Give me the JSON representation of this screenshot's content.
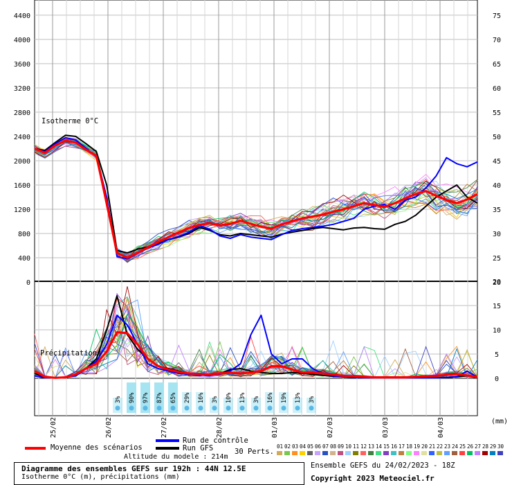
{
  "chart_data": [
    {
      "type": "line",
      "title": "Isotherme 0°C",
      "left_axis": {
        "ticks": [
          0,
          400,
          800,
          1200,
          1600,
          2000,
          2400,
          2800,
          3200,
          3600,
          4000,
          4400
        ],
        "range": [
          0,
          4600
        ]
      },
      "right_axis": {
        "ticks": [
          20,
          25,
          30,
          35,
          40,
          45,
          50,
          55,
          60,
          65,
          70,
          75
        ],
        "range": [
          20,
          77
        ]
      },
      "x_labels": [
        "25/02",
        "26/02",
        "27/02",
        "28/02",
        "01/03",
        "02/03",
        "03/03",
        "04/03"
      ],
      "series": [
        {
          "name": "Moyenne des scénarios",
          "color": "#ff0000",
          "values": [
            2200,
            2130,
            2250,
            2330,
            2300,
            2180,
            2080,
            1300,
            480,
            400,
            480,
            570,
            660,
            740,
            820,
            890,
            940,
            970,
            930,
            960,
            1010,
            960,
            910,
            880,
            950,
            1000,
            1050,
            1080,
            1110,
            1160,
            1200,
            1250,
            1300,
            1270,
            1240,
            1300,
            1380,
            1450,
            1500,
            1420,
            1350,
            1300,
            1360,
            1450
          ]
        },
        {
          "name": "Run de contrôle",
          "color": "#0000ff",
          "values": [
            2200,
            2150,
            2280,
            2380,
            2340,
            2200,
            2080,
            1400,
            420,
            380,
            470,
            560,
            620,
            700,
            750,
            820,
            930,
            870,
            760,
            720,
            780,
            740,
            720,
            700,
            780,
            850,
            880,
            900,
            920,
            950,
            1000,
            1050,
            1200,
            1250,
            1280,
            1200,
            1350,
            1400,
            1550,
            1750,
            2050,
            1950,
            1900,
            1980
          ]
        },
        {
          "name": "Run GFS",
          "color": "#000000",
          "values": [
            2200,
            2170,
            2300,
            2420,
            2400,
            2280,
            2150,
            1600,
            520,
            480,
            540,
            580,
            640,
            700,
            740,
            800,
            900,
            850,
            780,
            760,
            800,
            780,
            760,
            740,
            790,
            820,
            850,
            880,
            900,
            880,
            860,
            890,
            900,
            880,
            870,
            950,
            1000,
            1100,
            1250,
            1400,
            1500,
            1600,
            1400,
            1300
          ]
        }
      ]
    },
    {
      "type": "line",
      "title": "Précipitations",
      "right_axis": {
        "ticks": [
          0,
          5,
          10,
          15,
          20
        ],
        "range": [
          0,
          20
        ]
      },
      "unit": "(mm)",
      "series": [
        {
          "name": "Moyenne des scénarios",
          "color": "#ff0000",
          "values": [
            1.5,
            0.3,
            0.1,
            0.2,
            0.8,
            2.0,
            3.0,
            5.5,
            9.5,
            9.3,
            7.0,
            4.0,
            2.5,
            1.8,
            1.3,
            1.0,
            0.9,
            0.8,
            1.0,
            1.2,
            1.0,
            1.2,
            1.5,
            2.5,
            2.5,
            1.8,
            1.2,
            1.2,
            1.0,
            0.8,
            0.5,
            0.4,
            0.3,
            0.2,
            0.2,
            0.2,
            0.2,
            0.3,
            0.4,
            0.5,
            0.7,
            0.9,
            0.6,
            0.2
          ]
        },
        {
          "name": "Run de contrôle",
          "color": "#0000ff",
          "values": [
            0.5,
            0.1,
            0.1,
            0.2,
            0.5,
            2.0,
            3.5,
            7.0,
            13.0,
            11.0,
            7.0,
            3.0,
            2.0,
            1.5,
            1.0,
            0.8,
            0.7,
            0.6,
            0.8,
            1.5,
            3.0,
            9.0,
            13.0,
            5.0,
            3.0,
            4.0,
            4.0,
            2.0,
            1.0,
            0.5,
            0.3,
            0.2,
            0.1,
            0.1,
            0.1,
            0.1,
            0.1,
            0.1,
            0.1,
            0.1,
            0.2,
            0.3,
            1.5,
            0.2
          ]
        },
        {
          "name": "Run GFS",
          "color": "#000000",
          "values": [
            1.0,
            0.2,
            0.1,
            0.2,
            0.6,
            2.0,
            4.0,
            10.0,
            17.0,
            9.0,
            6.0,
            4.0,
            2.5,
            2.0,
            1.5,
            1.0,
            0.8,
            0.7,
            1.0,
            1.8,
            2.0,
            1.5,
            1.2,
            1.0,
            1.0,
            1.2,
            1.0,
            0.8,
            0.6,
            0.4,
            0.3,
            0.2,
            0.2,
            0.1,
            0.1,
            0.1,
            0.1,
            0.1,
            0.1,
            0.1,
            0.2,
            0.3,
            0.5,
            0.1
          ]
        }
      ]
    }
  ],
  "snow_probabilities": [
    "3%",
    "90%",
    "97%",
    "87%",
    "65%",
    "29%",
    "16%",
    "3%",
    "10%",
    "13%",
    "3%",
    "16%",
    "19%",
    "13%",
    "3%"
  ],
  "legend": {
    "moyenne": "Moyenne des scénarios",
    "controle": "Run de contrôle",
    "gfs": "Run GFS",
    "perts": "30 Perts.",
    "altitude": "Altitude du modele : 214m"
  },
  "perturbations": {
    "labels": [
      "01",
      "02",
      "03",
      "04",
      "05",
      "06",
      "07",
      "08",
      "09",
      "10",
      "11",
      "12",
      "13",
      "14",
      "15",
      "16",
      "17",
      "18",
      "19",
      "20",
      "21",
      "22",
      "23",
      "24",
      "25",
      "26",
      "27",
      "28",
      "29",
      "30"
    ],
    "colors": [
      "#d0ac5a",
      "#78c850",
      "#ff9020",
      "#ffd000",
      "#606060",
      "#c8a0ff",
      "#2850c0",
      "#d2b48c",
      "#c05080",
      "#a0d0ff",
      "#808000",
      "#ff6060",
      "#408040",
      "#40e080",
      "#8040c0",
      "#40c0c0",
      "#c08040",
      "#80ff80",
      "#ff80ff",
      "#e0e0a0",
      "#3060ff",
      "#c0c040",
      "#60a0ff",
      "#a06040",
      "#ff4040",
      "#00c060",
      "#c080ff",
      "#a00000",
      "#0080c0",
      "#4040c0"
    ]
  },
  "footer": {
    "title": "Diagramme des ensembles GEFS sur 192h : 44N 12.5E",
    "subtitle": "Isotherme 0°C (m), précipitations (mm)",
    "ensemble": "Ensemble GEFS du 24/02/2023 - 18Z",
    "copyright": "Copyright 2023 Meteociel.fr"
  }
}
